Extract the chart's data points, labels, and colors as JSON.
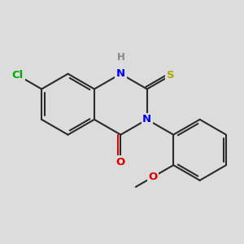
{
  "bg_color": "#dcdcdc",
  "bond_color": "#2a2a2a",
  "bond_width": 1.5,
  "atom_colors": {
    "Cl": "#00aa00",
    "N": "#0000ee",
    "H": "#888888",
    "O": "#dd0000",
    "S": "#aaaa00"
  },
  "font_size": 9.5,
  "fig_size": [
    3.0,
    3.0
  ],
  "dpi": 100
}
